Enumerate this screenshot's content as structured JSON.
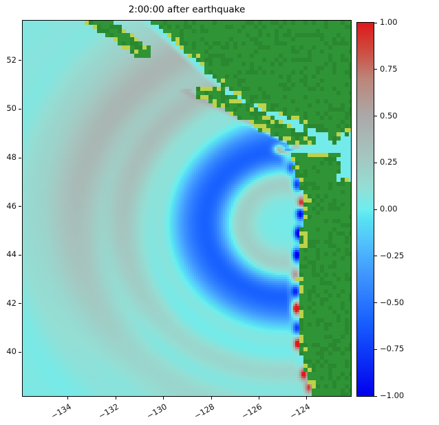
{
  "chart_data": {
    "type": "heatmap",
    "title": "2:00:00 after earthquake",
    "x_axis": {
      "range": [
        -135.9,
        -122.15
      ],
      "ticks": [
        -134,
        -132,
        -130,
        -128,
        -126,
        -124
      ],
      "tick_labels": [
        "−134",
        "−132",
        "−130",
        "−128",
        "−126",
        "−124"
      ],
      "rotation_deg": 30
    },
    "y_axis": {
      "range": [
        38.2,
        53.64
      ],
      "ticks": [
        40,
        42,
        44,
        46,
        48,
        50,
        52
      ],
      "tick_labels": [
        "40",
        "42",
        "44",
        "46",
        "48",
        "50",
        "52"
      ]
    },
    "colorbar": {
      "range": [
        -1,
        1
      ],
      "ticks": [
        1.0,
        0.75,
        0.5,
        0.25,
        0.0,
        -0.25,
        -0.5,
        -0.75,
        -1.0
      ],
      "tick_labels": [
        "1.00",
        "0.75",
        "0.50",
        "0.25",
        "0.00",
        "−0.25",
        "−0.50",
        "−0.75",
        "−1.00"
      ]
    },
    "colormap_stops": [
      {
        "v": -1.0,
        "c": [
          0,
          0,
          236
        ]
      },
      {
        "v": -0.6,
        "c": [
          24,
          96,
          255
        ]
      },
      {
        "v": -0.35,
        "c": [
          64,
          150,
          255
        ]
      },
      {
        "v": -0.15,
        "c": [
          84,
          200,
          250
        ]
      },
      {
        "v": -0.05,
        "c": [
          88,
          226,
          242
        ]
      },
      {
        "v": 0.0,
        "c": [
          108,
          238,
          238
        ]
      },
      {
        "v": 0.12,
        "c": [
          148,
          222,
          212
        ]
      },
      {
        "v": 0.3,
        "c": [
          166,
          196,
          190
        ]
      },
      {
        "v": 0.5,
        "c": [
          171,
          169,
          169
        ]
      },
      {
        "v": 0.7,
        "c": [
          188,
          133,
          122
        ]
      },
      {
        "v": 0.85,
        "c": [
          206,
          76,
          64
        ]
      },
      {
        "v": 1.0,
        "c": [
          221,
          25,
          28
        ]
      }
    ],
    "field": {
      "description": "Sea-surface elevation (m) of a Cascadia tsunami 2:00:00 after the earthquake. Concentric wave rings spread WNW from a source off the Oregon coast; a strong negative (blue) crescent lies offshore, a broad weak positive (grey) leading front fills the NW half of the domain, and alternating trapped red/blue extrema hug the US West Coast. Land (Pacific NW, Vancouver Island, Haida Gwaii) is green with yellow low-lying shore pixels.",
      "base": 0.02,
      "source": {
        "lon": -124.9,
        "lat": 45.3
      },
      "rings": [
        {
          "r": 2.5,
          "sigma": 0.7,
          "amp": -0.65
        },
        {
          "r": 1.3,
          "sigma": 0.5,
          "amp": 0.22
        },
        {
          "r": 4.9,
          "sigma": 1.1,
          "amp": 0.16,
          "nw": true
        },
        {
          "r": 6.6,
          "sigma": 1.0,
          "amp": 0.26,
          "nw": true
        }
      ],
      "coastal_hotspots": [
        {
          "lat": 38.55,
          "lon": -123.92,
          "amp": 0.9
        },
        {
          "lat": 39.1,
          "lon": -124.12,
          "amp": 1.1
        },
        {
          "lat": 40.35,
          "lon": -124.38,
          "amp": 1.2
        },
        {
          "lat": 41.0,
          "lon": -124.41,
          "amp": -0.8
        },
        {
          "lat": 41.8,
          "lon": -124.44,
          "amp": 1.3
        },
        {
          "lat": 42.5,
          "lon": -124.47,
          "amp": -0.9
        },
        {
          "lat": 43.2,
          "lon": -124.49,
          "amp": 0.6
        },
        {
          "lat": 44.0,
          "lon": -124.42,
          "amp": -1.2
        },
        {
          "lat": 44.9,
          "lon": -124.34,
          "amp": -1.3
        },
        {
          "lat": 45.7,
          "lon": -124.27,
          "amp": -1.1
        },
        {
          "lat": 46.15,
          "lon": -124.23,
          "amp": 1.0
        },
        {
          "lat": 46.9,
          "lon": -124.42,
          "amp": -0.8
        },
        {
          "lat": 47.6,
          "lon": -124.66,
          "amp": -0.6
        },
        {
          "lat": 48.35,
          "lon": -125.15,
          "amp": 1.0,
          "sl": 0.2,
          "sw": 0.25
        }
      ],
      "geography": {
        "us_coast": [
          [
            38.2,
            -123.75
          ],
          [
            40.0,
            -124.25
          ],
          [
            42.9,
            -124.4
          ],
          [
            46.3,
            -124.1
          ],
          [
            48.3,
            -124.78
          ]
        ],
        "bc_coast": [
          [
            48.5,
            -122.9
          ],
          [
            49.0,
            -123.25
          ],
          [
            49.6,
            -124.6
          ],
          [
            50.0,
            -125.9
          ],
          [
            50.6,
            -126.9
          ],
          [
            51.3,
            -127.9
          ],
          [
            52.2,
            -128.9
          ],
          [
            53.0,
            -129.8
          ],
          [
            53.7,
            -130.6
          ]
        ],
        "vancouver_island": {
          "a": [
            -123.95,
            48.55
          ],
          "b": [
            -128.25,
            50.7
          ],
          "hw": 0.3
        },
        "haida_gwaii": {
          "a": [
            -133.3,
            53.95
          ],
          "b": [
            -130.9,
            52.35
          ],
          "hw": 0.28
        },
        "jdf": {
          "lat0": 48.22,
          "lat1": 48.52,
          "lon_west": -124.95
        },
        "puget": {
          "lat0": 47.05,
          "lat1": 48.95,
          "lon_west": -122.66
        }
      },
      "colors": {
        "land": "#2f9435",
        "land2": "#2a8830",
        "lowland": "#bcd24a"
      }
    }
  }
}
